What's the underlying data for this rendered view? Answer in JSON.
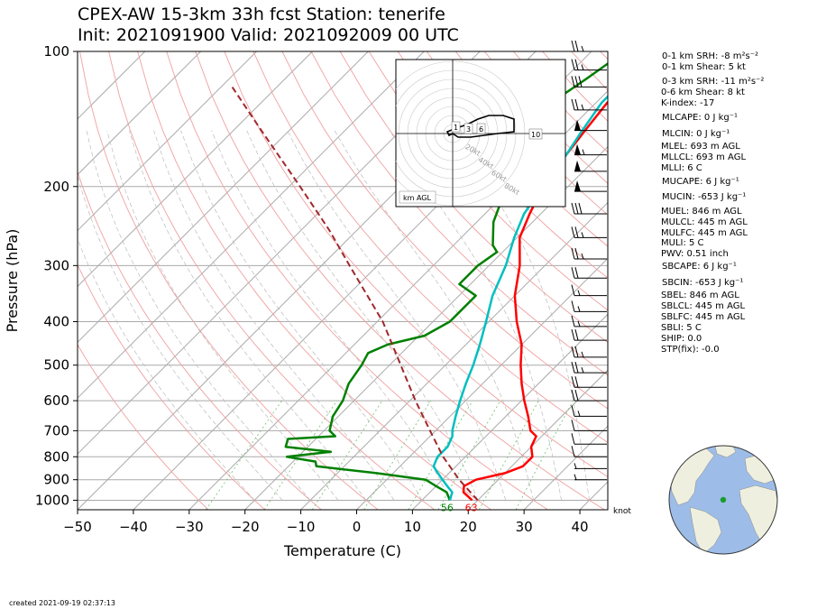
{
  "header": {
    "line1": "CPEX-AW 15-3km  33h fcst  Station: tenerife",
    "line2": "Init: 2021091900  Valid: 2021092009 00 UTC"
  },
  "chart_data": {
    "type": "line",
    "subtype": "skew-T log-p diagram",
    "xlabel": "Temperature (C)",
    "ylabel": "Pressure (hPa)",
    "xlim": [
      -50,
      45
    ],
    "ylim": [
      1050,
      100
    ],
    "y_scale": "log",
    "x_ticks": [
      -50,
      -40,
      -30,
      -20,
      -10,
      0,
      10,
      20,
      30,
      40
    ],
    "y_ticks": [
      100,
      200,
      300,
      400,
      500,
      600,
      700,
      800,
      900,
      1000
    ],
    "wind_unit": "knot",
    "series": [
      {
        "name": "temperature",
        "color": "#ff0000",
        "points": [
          [
            1000,
            19
          ],
          [
            960,
            16
          ],
          [
            930,
            15
          ],
          [
            900,
            16
          ],
          [
            870,
            20
          ],
          [
            840,
            22
          ],
          [
            800,
            22
          ],
          [
            760,
            20
          ],
          [
            720,
            19
          ],
          [
            700,
            17
          ],
          [
            650,
            14
          ],
          [
            600,
            10.5
          ],
          [
            550,
            7
          ],
          [
            500,
            3.5
          ],
          [
            450,
            0
          ],
          [
            400,
            -5
          ],
          [
            350,
            -10
          ],
          [
            300,
            -14.5
          ],
          [
            260,
            -19.5
          ],
          [
            230,
            -22
          ],
          [
            200,
            -24.5
          ],
          [
            170,
            -26
          ],
          [
            150,
            -27
          ],
          [
            130,
            -28
          ],
          [
            115,
            -28
          ],
          [
            110,
            -25
          ],
          [
            100,
            -21
          ]
        ]
      },
      {
        "name": "dewpoint",
        "color": "#008000",
        "points": [
          [
            1000,
            15
          ],
          [
            960,
            13
          ],
          [
            930,
            10
          ],
          [
            900,
            7
          ],
          [
            870,
            -3
          ],
          [
            840,
            -15
          ],
          [
            820,
            -16
          ],
          [
            800,
            -22
          ],
          [
            780,
            -15
          ],
          [
            760,
            -24
          ],
          [
            730,
            -25
          ],
          [
            720,
            -17
          ],
          [
            700,
            -19
          ],
          [
            650,
            -21
          ],
          [
            600,
            -22
          ],
          [
            550,
            -24
          ],
          [
            500,
            -25
          ],
          [
            470,
            -26
          ],
          [
            450,
            -24
          ],
          [
            430,
            -19
          ],
          [
            400,
            -17
          ],
          [
            350,
            -17
          ],
          [
            330,
            -22
          ],
          [
            300,
            -22
          ],
          [
            280,
            -21
          ],
          [
            270,
            -23
          ],
          [
            240,
            -27
          ],
          [
            200,
            -31
          ],
          [
            180,
            -37
          ],
          [
            165,
            -43
          ],
          [
            150,
            -42
          ],
          [
            130,
            -38
          ],
          [
            115,
            -36
          ],
          [
            100,
            -34
          ]
        ]
      },
      {
        "name": "wetbulb",
        "color": "#00bfbf",
        "points": [
          [
            1000,
            15
          ],
          [
            960,
            14
          ],
          [
            930,
            12
          ],
          [
            900,
            10
          ],
          [
            870,
            8
          ],
          [
            840,
            6
          ],
          [
            800,
            5
          ],
          [
            760,
            5
          ],
          [
            720,
            4
          ],
          [
            700,
            3
          ],
          [
            650,
            1
          ],
          [
            600,
            -1
          ],
          [
            550,
            -3
          ],
          [
            500,
            -5
          ],
          [
            450,
            -7.5
          ],
          [
            400,
            -10.5
          ],
          [
            350,
            -14
          ],
          [
            300,
            -17
          ],
          [
            260,
            -20.5
          ],
          [
            230,
            -23
          ],
          [
            200,
            -24.5
          ],
          [
            170,
            -26
          ],
          [
            150,
            -27.5
          ],
          [
            130,
            -29
          ],
          [
            115,
            -29
          ],
          [
            110,
            -27
          ],
          [
            100,
            -23
          ]
        ]
      },
      {
        "name": "parcel",
        "color": "#a0282d",
        "points": [
          [
            1000,
            20
          ],
          [
            900,
            13
          ],
          [
            800,
            6
          ],
          [
            700,
            -1
          ],
          [
            600,
            -9
          ],
          [
            500,
            -18
          ],
          [
            400,
            -29
          ],
          [
            300,
            -45
          ],
          [
            250,
            -55
          ],
          [
            200,
            -68
          ],
          [
            150,
            -85
          ],
          [
            120,
            -98
          ]
        ]
      }
    ],
    "surface_labels": {
      "temperature": "56",
      "dewpoint": "63"
    },
    "wind_barbs": [
      {
        "p": 100,
        "spd": 25
      },
      {
        "p": 110,
        "spd": 25
      },
      {
        "p": 120,
        "spd": 30
      },
      {
        "p": 135,
        "spd": 25
      },
      {
        "p": 150,
        "spd": 50
      },
      {
        "p": 170,
        "spd": 55
      },
      {
        "p": 185,
        "spd": 50
      },
      {
        "p": 205,
        "spd": 50
      },
      {
        "p": 230,
        "spd": 30
      },
      {
        "p": 260,
        "spd": 25
      },
      {
        "p": 290,
        "spd": 25
      },
      {
        "p": 320,
        "spd": 20
      },
      {
        "p": 350,
        "spd": 15
      },
      {
        "p": 380,
        "spd": 15
      },
      {
        "p": 410,
        "spd": 15
      },
      {
        "p": 440,
        "spd": 20
      },
      {
        "p": 480,
        "spd": 25
      },
      {
        "p": 520,
        "spd": 25
      },
      {
        "p": 560,
        "spd": 20
      },
      {
        "p": 600,
        "spd": 20
      },
      {
        "p": 650,
        "spd": 15
      },
      {
        "p": 700,
        "spd": 10
      },
      {
        "p": 750,
        "spd": 10
      },
      {
        "p": 800,
        "spd": 10
      },
      {
        "p": 850,
        "spd": 5
      },
      {
        "p": 900,
        "spd": 5
      }
    ],
    "hodograph": {
      "unit_label": "km AGL",
      "ring_labels": [
        "20kt",
        "40kt",
        "60kt",
        "80kt"
      ],
      "height_labels": [
        "1",
        "3",
        "6",
        "10"
      ],
      "points": [
        [
          0,
          0
        ],
        [
          -2,
          -1
        ],
        [
          -3,
          1
        ],
        [
          2,
          3
        ],
        [
          8,
          5
        ],
        [
          14,
          8
        ],
        [
          20,
          10
        ],
        [
          28,
          10
        ],
        [
          34,
          8
        ],
        [
          34,
          1
        ],
        [
          25,
          0
        ],
        [
          10,
          -2
        ],
        [
          3,
          -2
        ],
        [
          0,
          0
        ]
      ]
    }
  },
  "indices": [
    "0-1 km SRH: -8 m²s⁻²",
    "0-1 km Shear: 5 kt",
    "0-3 km SRH: -11 m²s⁻²",
    "0-6 km Shear: 8 kt",
    "K-index: -17",
    "MLCAPE: 0 J kg⁻¹",
    "MLCIN: 0 J kg⁻¹",
    "MLEL: 693 m AGL",
    "MLLCL: 693 m AGL",
    "MLLI: 6 C",
    "MUCAPE: 6 J kg⁻¹",
    "MUCIN: -653 J kg⁻¹",
    "MUEL: 846 m AGL",
    "MULCL: 445 m AGL",
    "MULFC: 445 m AGL",
    "MULI: 5 C",
    "PWV: 0.51 inch",
    "SBCAPE: 6 J kg⁻¹",
    "SBCIN: -653 J kg⁻¹",
    "SBEL: 846 m AGL",
    "SBLCL: 445 m AGL",
    "SBLFC: 445 m AGL",
    "SBLI: 5 C",
    "SHIP: 0.0",
    "STP(fix): -0.0"
  ],
  "footer": {
    "created": "created 2021-09-19 02:37:13"
  },
  "colors": {
    "temperature": "#ff0000",
    "dewpoint": "#008000",
    "wetbulb": "#00bfbf",
    "parcel": "#a0282d",
    "map_ocean": "#9dbde8",
    "map_land": "#efefdf",
    "station": "#1a9b2e"
  }
}
